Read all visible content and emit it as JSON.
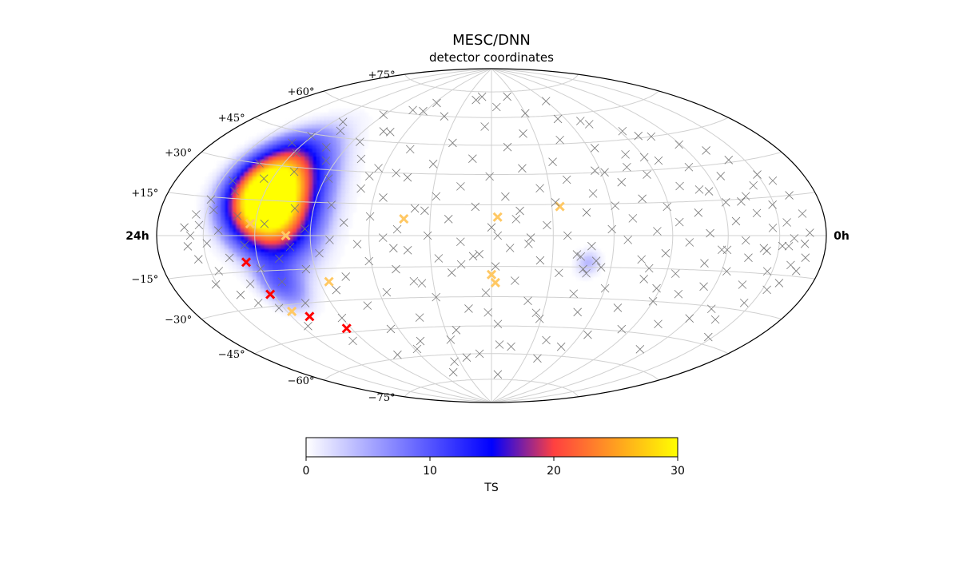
{
  "chart_data": {
    "type": "scatter",
    "projection": "hammer-aitoff",
    "title": "MESC/DNN",
    "subtitle": "detector coordinates",
    "ra_labels": {
      "left": "24h",
      "right": "0h"
    },
    "lat_ticks": [
      {
        "lat": 75,
        "label": "+75°"
      },
      {
        "lat": 60,
        "label": "+60°"
      },
      {
        "lat": 45,
        "label": "+45°"
      },
      {
        "lat": 30,
        "label": "+30°"
      },
      {
        "lat": 15,
        "label": "+15°"
      },
      {
        "lat": -15,
        "label": "−15°"
      },
      {
        "lat": -30,
        "label": "−30°"
      },
      {
        "lat": -45,
        "label": "−45°"
      },
      {
        "lat": -60,
        "label": "−60°"
      },
      {
        "lat": -75,
        "label": "−75°"
      }
    ],
    "grid": true,
    "heatmap": {
      "name": "TS",
      "blobs": [
        {
          "lon": 118,
          "lat": 15,
          "sigma_lon": 18,
          "sigma_lat": 13,
          "peak": 34,
          "angle": 35
        },
        {
          "lon": 107,
          "lat": 22,
          "sigma_lon": 18,
          "sigma_lat": 16,
          "peak": 12,
          "angle": 30
        },
        {
          "lon": 112,
          "lat": -22,
          "sigma_lon": 10,
          "sigma_lat": 8,
          "peak": 8,
          "angle": 0
        },
        {
          "lon": -48,
          "lat": -13,
          "sigma_lon": 5,
          "sigma_lat": 5,
          "peak": 5,
          "angle": 0
        }
      ]
    },
    "colorbar": {
      "label": "TS",
      "range": [
        0,
        30
      ],
      "ticks": [
        {
          "value": 0,
          "label": "0"
        },
        {
          "value": 10,
          "label": "10"
        },
        {
          "value": 20,
          "label": "20"
        },
        {
          "value": 30,
          "label": "30"
        }
      ],
      "stops": [
        {
          "value": 0,
          "color": "#ffffff"
        },
        {
          "value": 15,
          "color": "#0000ff"
        },
        {
          "value": 20,
          "color": "#ff4040"
        },
        {
          "value": 30,
          "color": "#ffff00"
        }
      ]
    },
    "series": [
      {
        "color": "#ff0000",
        "marker": "x",
        "points": [
          [
            127,
            -11
          ],
          [
            122,
            -25
          ],
          [
            109,
            -36
          ],
          [
            93,
            -43
          ]
        ]
      },
      {
        "color": "#ffc864",
        "marker": "x",
        "points": [
          [
            123,
            5
          ],
          [
            103,
            0
          ],
          [
            43,
            8
          ],
          [
            -3,
            9
          ],
          [
            -34,
            14
          ],
          [
            85,
            -21
          ],
          [
            0,
            -19
          ],
          [
            -2,
            -23
          ],
          [
            117,
            -33
          ]
        ]
      },
      {
        "color": "#777777",
        "marker": "x",
        "points": [
          [
            -169,
            1
          ],
          [
            -168,
            -8
          ],
          [
            -166,
            8
          ],
          [
            -165,
            -13
          ],
          [
            -162,
            15
          ],
          [
            -160,
            -11
          ],
          [
            -159,
            -1
          ],
          [
            -158,
            -18
          ],
          [
            -157,
            21
          ],
          [
            -155,
            5
          ],
          [
            -153,
            -21
          ],
          [
            -152,
            -4
          ],
          [
            -150,
            24
          ],
          [
            -149,
            12
          ],
          [
            -147,
            -14
          ],
          [
            -146,
            3
          ],
          [
            -145,
            -27
          ],
          [
            -143,
            20
          ],
          [
            -141,
            -5
          ],
          [
            -140,
            31
          ],
          [
            -138,
            9
          ],
          [
            -136,
            -20
          ],
          [
            -135,
            16
          ],
          [
            -133,
            -9
          ],
          [
            -132,
            36
          ],
          [
            -130,
            -2
          ],
          [
            -128,
            -31
          ],
          [
            -127,
            25
          ],
          [
            -125,
            6
          ],
          [
            -123,
            -15
          ],
          [
            -122,
            14
          ],
          [
            -120,
            -36
          ],
          [
            -119,
            40
          ],
          [
            -117,
            -6
          ],
          [
            -115,
            19
          ],
          [
            -114,
            -22
          ],
          [
            -112,
            30
          ],
          [
            -110,
            1
          ],
          [
            -109,
            -12
          ],
          [
            -107,
            45
          ],
          [
            -105,
            10
          ],
          [
            -104,
            -40
          ],
          [
            -102,
            -26
          ],
          [
            -100,
            22
          ],
          [
            -99,
            -3
          ],
          [
            -97,
            34
          ],
          [
            -95,
            -17
          ],
          [
            -94,
            6
          ],
          [
            -92,
            49
          ],
          [
            -90,
            -30
          ],
          [
            -89,
            13
          ],
          [
            -87,
            -8
          ],
          [
            -85,
            28
          ],
          [
            -84,
            -44
          ],
          [
            -82,
            2
          ],
          [
            -80,
            38
          ],
          [
            -79,
            -20
          ],
          [
            -77,
            17
          ],
          [
            -75,
            -11
          ],
          [
            -74,
            54
          ],
          [
            -72,
            -34
          ],
          [
            -70,
            8
          ],
          [
            -69,
            25
          ],
          [
            -67,
            -2
          ],
          [
            -65,
            -48
          ],
          [
            -64,
            42
          ],
          [
            -62,
            14
          ],
          [
            -60,
            -25
          ],
          [
            -59,
            3
          ],
          [
            -57,
            31
          ],
          [
            -55,
            -15
          ],
          [
            -54,
            58
          ],
          [
            -52,
            20
          ],
          [
            -50,
            -37
          ],
          [
            -49,
            -5
          ],
          [
            -47,
            11
          ],
          [
            -45,
            47
          ],
          [
            -44,
            -28
          ],
          [
            -42,
            -9
          ],
          [
            -40,
            27
          ],
          [
            -39,
            -52
          ],
          [
            -37,
            0
          ],
          [
            -35,
            36
          ],
          [
            -34,
            -18
          ],
          [
            -32,
            16
          ],
          [
            -30,
            62
          ],
          [
            -29,
            -41
          ],
          [
            -27,
            5
          ],
          [
            -25,
            23
          ],
          [
            -24,
            -12
          ],
          [
            -22,
            51
          ],
          [
            -20,
            -32
          ],
          [
            -19,
            -1
          ],
          [
            -17,
            33
          ],
          [
            -15,
            -56
          ],
          [
            -14,
            12
          ],
          [
            -12,
            -22
          ],
          [
            -10,
            44
          ],
          [
            -9,
            -6
          ],
          [
            -7,
            19
          ],
          [
            -5,
            66
          ],
          [
            -4,
            -44
          ],
          [
            -2,
            -15
          ],
          [
            0,
            4
          ],
          [
            1,
            29
          ],
          [
            3,
            -28
          ],
          [
            5,
            55
          ],
          [
            6,
            -9
          ],
          [
            8,
            14
          ],
          [
            10,
            -60
          ],
          [
            11,
            38
          ],
          [
            13,
            -36
          ],
          [
            15,
            -3
          ],
          [
            16,
            24
          ],
          [
            18,
            70
          ],
          [
            20,
            -18
          ],
          [
            21,
            8
          ],
          [
            23,
            -47
          ],
          [
            25,
            46
          ],
          [
            26,
            -11
          ],
          [
            28,
            19
          ],
          [
            30,
            -30
          ],
          [
            31,
            0
          ],
          [
            33,
            35
          ],
          [
            35,
            -64
          ],
          [
            36,
            -23
          ],
          [
            38,
            13
          ],
          [
            40,
            60
          ],
          [
            41,
            -7
          ],
          [
            43,
            -40
          ],
          [
            45,
            28
          ],
          [
            46,
            3
          ],
          [
            48,
            -16
          ],
          [
            50,
            42
          ],
          [
            51,
            -52
          ],
          [
            53,
            -1
          ],
          [
            55,
            18
          ],
          [
            56,
            -27
          ],
          [
            58,
            67
          ],
          [
            60,
            9
          ],
          [
            61,
            -12
          ],
          [
            63,
            32
          ],
          [
            65,
            -45
          ],
          [
            66,
            -4
          ],
          [
            68,
            22
          ],
          [
            70,
            -33
          ],
          [
            71,
            50
          ],
          [
            73,
            6
          ],
          [
            75,
            -19
          ],
          [
            76,
            36
          ],
          [
            78,
            -58
          ],
          [
            80,
            -2
          ],
          [
            81,
            14
          ],
          [
            83,
            -25
          ],
          [
            85,
            44
          ],
          [
            86,
            -8
          ],
          [
            88,
            26
          ],
          [
            90,
            -38
          ],
          [
            91,
            58
          ],
          [
            93,
            3
          ],
          [
            95,
            -15
          ],
          [
            96,
            34
          ],
          [
            98,
            -49
          ],
          [
            100,
            12
          ],
          [
            101,
            -5
          ],
          [
            103,
            40
          ],
          [
            105,
            -30
          ],
          [
            106,
            48
          ],
          [
            108,
            -10
          ],
          [
            110,
            28
          ],
          [
            111,
            -20
          ],
          [
            113,
            52
          ],
          [
            115,
            5
          ],
          [
            116,
            -40
          ],
          [
            118,
            36
          ],
          [
            120,
            -14
          ],
          [
            121,
            44
          ],
          [
            123,
            -31
          ],
          [
            125,
            24
          ],
          [
            126,
            -4
          ],
          [
            128,
            40
          ],
          [
            130,
            -20
          ],
          [
            131,
            8
          ],
          [
            133,
            -28
          ],
          [
            135,
            30
          ],
          [
            136,
            -9
          ],
          [
            138,
            18
          ],
          [
            140,
            -24
          ],
          [
            141,
            2
          ],
          [
            143,
            22
          ],
          [
            145,
            -14
          ],
          [
            146,
            10
          ],
          [
            148,
            -3
          ],
          [
            150,
            14
          ],
          [
            151,
            -19
          ],
          [
            153,
            4
          ],
          [
            155,
            -9
          ],
          [
            156,
            8
          ],
          [
            158,
            0
          ],
          [
            160,
            -4
          ],
          [
            162,
            3
          ],
          [
            -6,
            -55
          ],
          [
            22,
            -62
          ],
          [
            -41,
            -62
          ],
          [
            12,
            72
          ],
          [
            -20,
            72
          ],
          [
            45,
            -70
          ],
          [
            -8,
            -72
          ],
          [
            62,
            62
          ],
          [
            -60,
            68
          ],
          [
            2,
            -38
          ],
          [
            -26,
            -38
          ],
          [
            29,
            -52
          ],
          [
            -53,
            -55
          ],
          [
            58,
            -56
          ],
          [
            72,
            62
          ],
          [
            -70,
            56
          ],
          [
            -99,
            46
          ],
          [
            -113,
            -52
          ],
          [
            48,
            -6
          ],
          [
            -3,
            0
          ],
          [
            9,
            -10
          ],
          [
            15,
            -14
          ],
          [
            -12,
            8
          ],
          [
            -18,
            -4
          ],
          [
            33,
            12
          ],
          [
            40,
            -22
          ],
          [
            -48,
            -18
          ],
          [
            -44,
            -10
          ],
          [
            -52,
            -12
          ],
          [
            -46,
            -16
          ],
          [
            -80,
            -15
          ],
          [
            -88,
            -24
          ],
          [
            -120,
            -6
          ],
          [
            -131,
            14
          ],
          [
            -143,
            -6
          ],
          [
            -156,
            -4
          ],
          [
            -166,
            -3
          ],
          [
            -137,
            -35
          ],
          [
            -147,
            -42
          ],
          [
            -90,
            36
          ],
          [
            -76,
            32
          ],
          [
            -62,
            30
          ],
          [
            -110,
            20
          ],
          [
            66,
            28
          ],
          [
            76,
            50
          ],
          [
            52,
            30
          ]
        ]
      }
    ]
  }
}
